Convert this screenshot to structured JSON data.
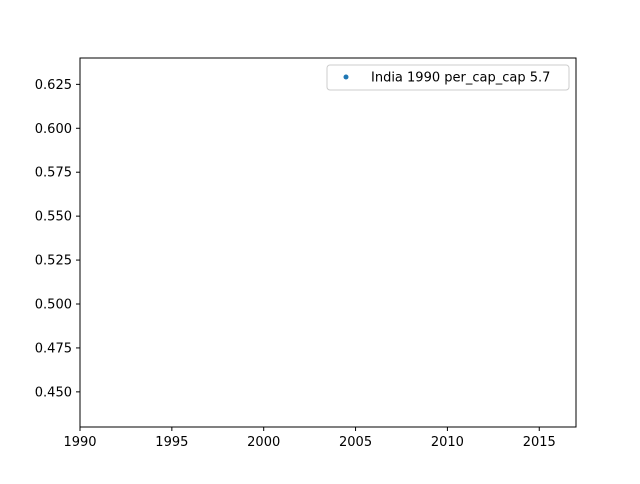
{
  "chart_data": {
    "type": "scatter",
    "title": "",
    "xlabel": "",
    "ylabel": "",
    "xlim": [
      1990,
      2017
    ],
    "ylim": [
      0.43,
      0.64
    ],
    "x_ticks": [
      1990,
      1995,
      2000,
      2005,
      2010,
      2015
    ],
    "y_ticks": [
      0.45,
      0.475,
      0.5,
      0.525,
      0.55,
      0.575,
      0.6,
      0.625
    ],
    "x_tick_labels": [
      "1990",
      "1995",
      "2000",
      "2005",
      "2010",
      "2015"
    ],
    "y_tick_labels": [
      "0.450",
      "0.475",
      "0.500",
      "0.525",
      "0.550",
      "0.575",
      "0.600",
      "0.625"
    ],
    "grid": false,
    "legend_position": "top-right",
    "series": [
      {
        "name": "India 1990 per_cap_cap 5.7",
        "color": "#1f77b4",
        "x": [],
        "y": []
      }
    ]
  }
}
